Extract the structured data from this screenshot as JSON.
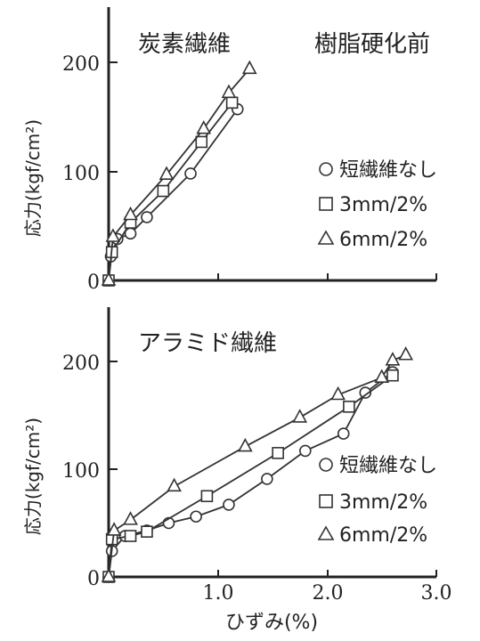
{
  "chart_data": [
    {
      "type": "line",
      "title": "炭素繊維",
      "subtitle": "樹脂硬化前",
      "ylabel": "応力(kgf/cm²)",
      "xlabel": "",
      "xlim": [
        0,
        3.0
      ],
      "ylim": [
        0,
        250
      ],
      "yticks": [
        "0",
        "100",
        "200"
      ],
      "legend_position": "right",
      "series": [
        {
          "name": "短繊維なし",
          "marker": "circle",
          "x": [
            0.0,
            0.02,
            0.08,
            0.2,
            0.35,
            0.75,
            1.18
          ],
          "y": [
            0,
            22,
            38,
            43,
            58,
            98,
            157
          ]
        },
        {
          "name": "3mm/2%",
          "marker": "square",
          "x": [
            0.0,
            0.03,
            0.2,
            0.5,
            0.85,
            1.13
          ],
          "y": [
            0,
            26,
            53,
            82,
            127,
            163
          ]
        },
        {
          "name": "6mm/2%",
          "marker": "triangle",
          "x": [
            0.0,
            0.04,
            0.2,
            0.53,
            0.87,
            1.1,
            1.29
          ],
          "y": [
            0,
            40,
            60,
            97,
            139,
            172,
            194
          ]
        }
      ]
    },
    {
      "type": "line",
      "title": "アラミド繊維",
      "ylabel": "応力(kgf/cm²)",
      "xlabel": "ひずみ(%)",
      "xlim": [
        0,
        3.0
      ],
      "ylim": [
        0,
        250
      ],
      "xticks": [
        "1.0",
        "2.0",
        "3.0"
      ],
      "yticks": [
        "0",
        "100",
        "200"
      ],
      "legend_position": "bottom-right",
      "series": [
        {
          "name": "短繊維なし",
          "marker": "circle",
          "x": [
            0.0,
            0.03,
            0.15,
            0.35,
            0.55,
            0.8,
            1.1,
            1.45,
            1.8,
            2.15,
            2.35,
            2.6
          ],
          "y": [
            0,
            24,
            38,
            43,
            50,
            56,
            67,
            91,
            117,
            133,
            171,
            190
          ]
        },
        {
          "name": "3mm/2%",
          "marker": "square",
          "x": [
            0.0,
            0.03,
            0.2,
            0.35,
            0.9,
            1.55,
            2.2,
            2.6
          ],
          "y": [
            0,
            35,
            38,
            42,
            75,
            115,
            158,
            187
          ]
        },
        {
          "name": "6mm/2%",
          "marker": "triangle",
          "x": [
            0.0,
            0.05,
            0.2,
            0.6,
            1.25,
            1.75,
            2.1,
            2.5,
            2.6,
            2.72
          ],
          "y": [
            0,
            43,
            53,
            84,
            121,
            148,
            169,
            185,
            201,
            206
          ]
        }
      ]
    }
  ]
}
